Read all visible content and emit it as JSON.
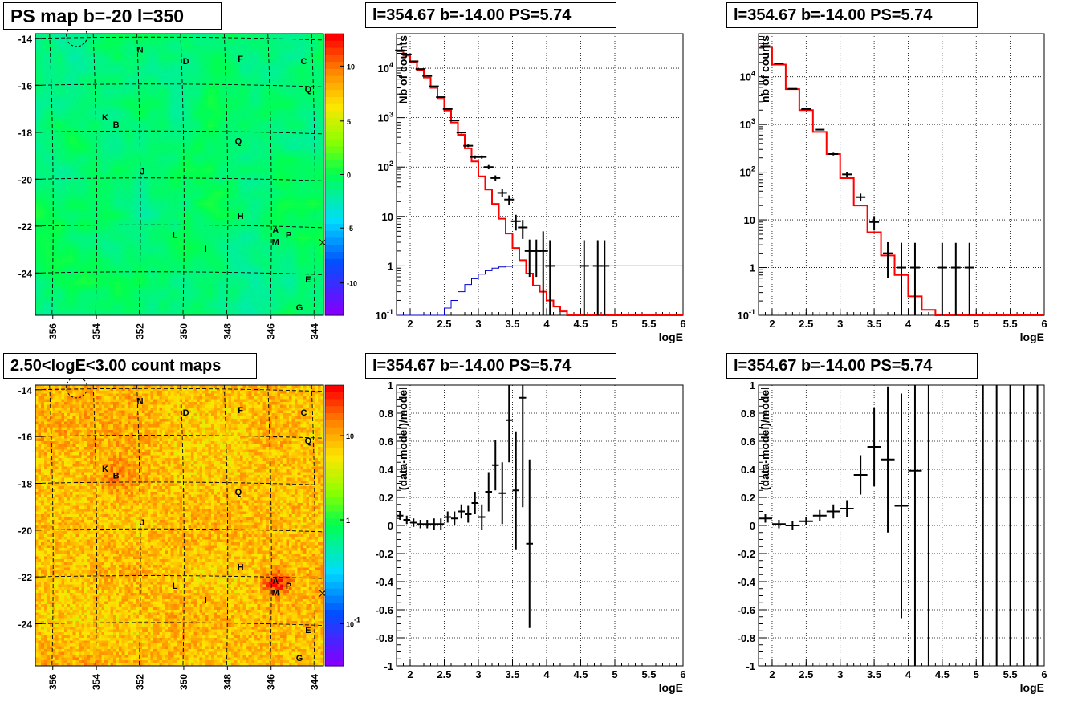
{
  "titles": {
    "map_top": "PS map b=-20 l=350",
    "map_bottom": "2.50<logE<3.00 count maps",
    "spec_center": "l=354.67 b=-14.00 PS=5.74",
    "spec_right": "l=354.67 b=-14.00 PS=5.74",
    "res_center": "l=354.67 b=-14.00 PS=5.74",
    "res_right": "l=354.67 b=-14.00 PS=5.74"
  },
  "chart_data": [
    {
      "id": "map_top",
      "type": "heatmap",
      "title": "PS map b=-20 l=350",
      "x_ticks": [
        "356",
        "354",
        "352",
        "350",
        "348",
        "346",
        "344"
      ],
      "y_ticks": [
        "-14",
        "-16",
        "-18",
        "-20",
        "-22",
        "-24"
      ],
      "xlim": [
        356.8,
        343.6
      ],
      "ylim": [
        -25.8,
        -13.8
      ],
      "colorbar": {
        "ticks": [
          "10",
          "5",
          "0",
          "-5",
          "-10"
        ],
        "range": [
          -13,
          13
        ]
      },
      "sources": [
        {
          "label": "N",
          "l": 352.0,
          "b": -14.6
        },
        {
          "label": "D",
          "l": 349.9,
          "b": -15.1
        },
        {
          "label": "F",
          "l": 347.4,
          "b": -15.0
        },
        {
          "label": "C",
          "l": 344.5,
          "b": -15.1
        },
        {
          "label": "Q",
          "l": 344.3,
          "b": -16.3
        },
        {
          "label": "K",
          "l": 353.6,
          "b": -17.5
        },
        {
          "label": "B",
          "l": 353.1,
          "b": -17.8
        },
        {
          "label": "Q",
          "l": 347.5,
          "b": -18.5
        },
        {
          "label": "J",
          "l": 351.9,
          "b": -19.8
        },
        {
          "label": "H",
          "l": 347.4,
          "b": -21.7
        },
        {
          "label": "A",
          "l": 345.8,
          "b": -22.3
        },
        {
          "label": "P",
          "l": 345.2,
          "b": -22.5
        },
        {
          "label": "M",
          "l": 345.8,
          "b": -22.8
        },
        {
          "label": "L",
          "l": 350.4,
          "b": -22.5
        },
        {
          "label": "I",
          "l": 349.0,
          "b": -23.1
        },
        {
          "label": "E",
          "l": 344.3,
          "b": -24.4
        },
        {
          "label": "G",
          "l": 344.7,
          "b": -25.6
        }
      ]
    },
    {
      "id": "map_bottom",
      "type": "heatmap",
      "title": "2.50<logE<3.00 count maps",
      "x_ticks": [
        "356",
        "354",
        "352",
        "350",
        "348",
        "346",
        "344"
      ],
      "y_ticks": [
        "-14",
        "-16",
        "-18",
        "-20",
        "-22",
        "-24"
      ],
      "xlim": [
        356.8,
        343.6
      ],
      "ylim": [
        -25.8,
        -13.8
      ],
      "colorbar": {
        "ticks": [
          "10",
          "1",
          "10-1"
        ],
        "log": true
      }
    },
    {
      "id": "spec_center",
      "type": "line",
      "title": "l=354.67 b=-14.00 PS=5.74",
      "xlabel": "logE",
      "ylabel": "Nb of counts",
      "xlim": [
        1.8,
        6.0
      ],
      "ylim": [
        0.1,
        50000
      ],
      "ylog": true,
      "grid": true,
      "x_ticks": [
        "2",
        "2.5",
        "3",
        "3.5",
        "4",
        "4.5",
        "5",
        "5.5",
        "6"
      ],
      "y_ticks": [
        "10-1",
        "1",
        "10",
        "102",
        "103",
        "104"
      ],
      "series": [
        {
          "color": "#ff0000",
          "bin_width": 0.1,
          "x": [
            1.8,
            1.9,
            2.0,
            2.1,
            2.2,
            2.3,
            2.4,
            2.5,
            2.6,
            2.7,
            2.8,
            2.9,
            3.0,
            3.1,
            3.2,
            3.3,
            3.4,
            3.5,
            3.6,
            3.7,
            3.8,
            3.9,
            4.0,
            4.1,
            4.2,
            4.3,
            4.4
          ],
          "values": [
            22000,
            18000,
            13000,
            9000,
            6500,
            4000,
            2400,
            1400,
            800,
            450,
            240,
            130,
            65,
            35,
            18,
            9,
            4.5,
            2.3,
            1.3,
            0.7,
            0.4,
            0.3,
            0.2,
            0.15,
            0.12,
            0.1,
            0.1
          ]
        },
        {
          "color": "#0000cc",
          "bin_width": 0.1,
          "x": [
            1.8,
            1.9,
            2.0,
            2.1,
            2.2,
            2.3,
            2.4,
            2.5,
            2.6,
            2.7,
            2.8,
            2.9,
            3.0,
            3.1,
            3.2,
            3.3,
            3.4,
            3.5,
            3.6,
            3.7,
            3.8,
            3.9,
            4.0,
            4.1,
            4.2,
            4.3,
            4.4,
            4.5,
            4.6,
            4.7,
            4.8,
            4.9,
            5.0,
            5.1,
            5.2,
            5.3,
            5.4,
            5.5,
            5.6,
            5.7,
            5.8,
            5.9
          ],
          "values": [
            0.1,
            0.1,
            0.1,
            0.1,
            0.1,
            0.1,
            0.1,
            0.14,
            0.2,
            0.3,
            0.42,
            0.55,
            0.68,
            0.8,
            0.9,
            0.95,
            0.98,
            1,
            1,
            1,
            1,
            1,
            1,
            1,
            1,
            1,
            1,
            1,
            1,
            1,
            1,
            1,
            1,
            1,
            1,
            1,
            1,
            1,
            1,
            1,
            1,
            1
          ]
        },
        {
          "color": "#000000",
          "points": true,
          "x": [
            1.85,
            1.95,
            2.05,
            2.15,
            2.25,
            2.35,
            2.45,
            2.55,
            2.65,
            2.75,
            2.85,
            2.95,
            3.05,
            3.15,
            3.25,
            3.35,
            3.45,
            3.55,
            3.65,
            3.75,
            3.85,
            3.95,
            4.05,
            4.55,
            4.75,
            4.85
          ],
          "values": [
            23000,
            19000,
            13800,
            9600,
            7000,
            4300,
            2600,
            1500,
            880,
            500,
            270,
            160,
            160,
            100,
            60,
            30,
            22,
            8,
            6,
            2,
            2,
            2,
            1,
            1,
            1,
            1
          ],
          "err_lo": [
            150,
            140,
            115,
            100,
            85,
            65,
            50,
            38,
            30,
            22,
            16,
            12,
            12,
            10,
            8,
            5.5,
            4.7,
            2.8,
            2.5,
            1.4,
            1.4,
            1.9,
            0.9,
            0.9,
            0.9,
            0.9
          ],
          "err_hi": [
            150,
            140,
            115,
            100,
            85,
            65,
            50,
            38,
            30,
            22,
            16,
            12,
            12,
            10,
            8,
            5.5,
            4.7,
            2.8,
            2.5,
            1.4,
            1.4,
            3,
            2.3,
            2.3,
            2.3,
            2.3
          ]
        }
      ]
    },
    {
      "id": "spec_right",
      "type": "line",
      "title": "l=354.67 b=-14.00 PS=5.74",
      "xlabel": "logE",
      "ylabel": "nb of counts",
      "xlim": [
        1.8,
        6.0
      ],
      "ylim": [
        0.1,
        80000
      ],
      "ylog": true,
      "grid": true,
      "x_ticks": [
        "2",
        "2.5",
        "3",
        "3.5",
        "4",
        "4.5",
        "5",
        "5.5",
        "6"
      ],
      "y_ticks": [
        "10-1",
        "1",
        "10",
        "102",
        "103",
        "104"
      ],
      "series": [
        {
          "color": "#ff0000",
          "bin_width": 0.2,
          "x": [
            1.8,
            2.0,
            2.2,
            2.4,
            2.6,
            2.8,
            3.0,
            3.2,
            3.4,
            3.6,
            3.8,
            4.0,
            4.2,
            4.4
          ],
          "values": [
            42000,
            18000,
            5500,
            2000,
            700,
            240,
            75,
            20,
            5.5,
            1.8,
            0.7,
            0.25,
            0.13,
            0.1
          ]
        },
        {
          "color": "#000000",
          "points": true,
          "x": [
            1.9,
            2.1,
            2.3,
            2.5,
            2.7,
            2.9,
            3.1,
            3.3,
            3.5,
            3.7,
            3.9,
            4.1,
            4.5,
            4.7,
            4.9
          ],
          "values": [
            44000,
            19000,
            5600,
            2100,
            780,
            240,
            90,
            30,
            9,
            2,
            1,
            1,
            1,
            1,
            1
          ],
          "err_lo": [
            210,
            140,
            75,
            46,
            28,
            15,
            9.5,
            5.5,
            3,
            1.4,
            0.9,
            0.9,
            0.9,
            0.9,
            0.9
          ],
          "err_hi": [
            210,
            140,
            75,
            46,
            28,
            15,
            9.5,
            5.5,
            3,
            1.4,
            2.3,
            2.3,
            2.3,
            2.3,
            2.3
          ]
        }
      ]
    },
    {
      "id": "res_center",
      "type": "scatter",
      "title": "l=354.67 b=-14.00 PS=5.74",
      "xlabel": "logE",
      "ylabel": "(data-model)/model",
      "xlim": [
        1.8,
        6.0
      ],
      "ylim": [
        -1,
        1
      ],
      "grid": true,
      "x_ticks": [
        "2",
        "2.5",
        "3",
        "3.5",
        "4",
        "4.5",
        "5",
        "5.5",
        "6"
      ],
      "y_ticks": [
        "-1",
        "-0.8",
        "-0.6",
        "-0.4",
        "-0.2",
        "0",
        "0.2",
        "0.4",
        "0.6",
        "0.8",
        "1"
      ],
      "series": [
        {
          "color": "#000000",
          "half_width": 0.05,
          "x": [
            1.85,
            1.95,
            2.05,
            2.15,
            2.25,
            2.35,
            2.45,
            2.55,
            2.65,
            2.75,
            2.85,
            2.95,
            3.05,
            3.15,
            3.25,
            3.35,
            3.45,
            3.55,
            3.65,
            3.75
          ],
          "values": [
            0.07,
            0.04,
            0.02,
            0.01,
            0.01,
            0.01,
            0.01,
            0.06,
            0.05,
            0.1,
            0.08,
            0.16,
            0.06,
            0.24,
            0.43,
            0.23,
            0.75,
            0.25,
            0.91,
            -0.13
          ],
          "err": [
            0.03,
            0.03,
            0.03,
            0.03,
            0.03,
            0.04,
            0.04,
            0.04,
            0.05,
            0.05,
            0.06,
            0.08,
            0.09,
            0.14,
            0.18,
            0.22,
            0.3,
            0.42,
            0.78,
            0.6
          ]
        }
      ]
    },
    {
      "id": "res_right",
      "type": "scatter",
      "title": "l=354.67 b=-14.00 PS=5.74",
      "xlabel": "logE",
      "ylabel": "(data-model)/model",
      "xlim": [
        1.8,
        6.0
      ],
      "ylim": [
        -1,
        1
      ],
      "grid": true,
      "x_ticks": [
        "2",
        "2.5",
        "3",
        "3.5",
        "4",
        "4.5",
        "5",
        "5.5",
        "6"
      ],
      "y_ticks": [
        "-1",
        "-0.8",
        "-0.6",
        "-0.4",
        "-0.2",
        "0",
        "0.2",
        "0.4",
        "0.6",
        "0.8",
        "1"
      ],
      "series": [
        {
          "color": "#000000",
          "half_width": 0.1,
          "x": [
            1.9,
            2.1,
            2.3,
            2.5,
            2.7,
            2.9,
            3.1,
            3.3,
            3.5,
            3.7,
            3.9,
            4.1
          ],
          "values": [
            0.05,
            0.01,
            0.0,
            0.03,
            0.07,
            0.1,
            0.12,
            0.36,
            0.56,
            0.47,
            0.14,
            0.39
          ],
          "err": [
            0.03,
            0.03,
            0.03,
            0.03,
            0.04,
            0.05,
            0.06,
            0.14,
            0.28,
            0.52,
            0.8,
            1.5
          ]
        },
        {
          "color": "#000000",
          "bars_only": true,
          "x": [
            4.3,
            5.1,
            5.3,
            5.5,
            5.7,
            5.9
          ]
        }
      ]
    }
  ]
}
